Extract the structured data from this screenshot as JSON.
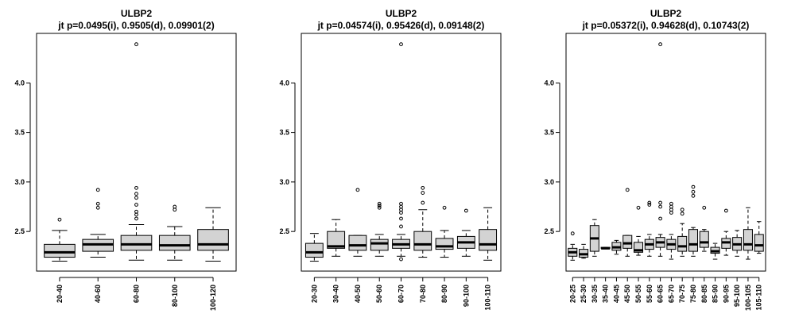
{
  "chart_data": [
    {
      "type": "boxplot",
      "title": "ULBP2",
      "subtitle": "jt p=0.0495(i), 0.9505(d), 0.09901(2)",
      "ylim": [
        2.1,
        4.5
      ],
      "yticks": [
        "2.5",
        "3.0",
        "3.5",
        "4.0"
      ],
      "categories": [
        "20-40",
        "40-60",
        "60-80",
        "80-100",
        "100-120"
      ],
      "boxes": [
        {
          "lw": 2.2,
          "q1": 2.24,
          "median": 2.29,
          "q3": 2.37,
          "uw": 2.51,
          "outliers": [
            2.62
          ]
        },
        {
          "lw": 2.24,
          "q1": 2.3,
          "median": 2.37,
          "q3": 2.42,
          "uw": 2.47,
          "outliers": [
            2.74,
            2.78,
            2.92
          ]
        },
        {
          "lw": 2.21,
          "q1": 2.31,
          "median": 2.37,
          "q3": 2.46,
          "uw": 2.57,
          "outliers": [
            2.63,
            2.67,
            2.7,
            2.77,
            2.84,
            2.88,
            2.94,
            4.39
          ]
        },
        {
          "lw": 2.21,
          "q1": 2.31,
          "median": 2.36,
          "q3": 2.46,
          "uw": 2.55,
          "outliers": [
            2.72,
            2.75
          ]
        },
        {
          "lw": 2.2,
          "q1": 2.31,
          "median": 2.37,
          "q3": 2.52,
          "uw": 2.74,
          "outliers": []
        }
      ]
    },
    {
      "type": "boxplot",
      "title": "ULBP2",
      "subtitle": "jt p=0.04574(i), 0.95426(d), 0.09148(2)",
      "ylim": [
        2.1,
        4.5
      ],
      "yticks": [
        "2.5",
        "3.0",
        "3.5",
        "4.0"
      ],
      "categories": [
        "20-30",
        "30-40",
        "40-50",
        "50-60",
        "60-70",
        "70-80",
        "80-90",
        "90-100",
        "100-110"
      ],
      "boxes": [
        {
          "lw": 2.2,
          "q1": 2.24,
          "median": 2.29,
          "q3": 2.38,
          "uw": 2.48,
          "outliers": []
        },
        {
          "lw": 2.25,
          "q1": 2.33,
          "median": 2.35,
          "q3": 2.5,
          "uw": 2.62,
          "outliers": []
        },
        {
          "lw": 2.25,
          "q1": 2.31,
          "median": 2.36,
          "q3": 2.46,
          "uw": 2.46,
          "outliers": [
            2.92
          ]
        },
        {
          "lw": 2.25,
          "q1": 2.31,
          "median": 2.38,
          "q3": 2.42,
          "uw": 2.47,
          "outliers": [
            2.74,
            2.76,
            2.78
          ]
        },
        {
          "lw": 2.25,
          "q1": 2.33,
          "median": 2.37,
          "q3": 2.42,
          "uw": 2.47,
          "outliers": [
            2.22,
            2.55,
            2.63,
            2.69,
            2.72,
            2.75,
            2.78,
            4.39
          ]
        },
        {
          "lw": 2.24,
          "q1": 2.31,
          "median": 2.37,
          "q3": 2.5,
          "uw": 2.72,
          "outliers": [
            2.79,
            2.89,
            2.94
          ]
        },
        {
          "lw": 2.24,
          "q1": 2.32,
          "median": 2.35,
          "q3": 2.43,
          "uw": 2.51,
          "outliers": [
            2.74
          ]
        },
        {
          "lw": 2.25,
          "q1": 2.33,
          "median": 2.39,
          "q3": 2.45,
          "uw": 2.51,
          "outliers": [
            2.71
          ]
        },
        {
          "lw": 2.21,
          "q1": 2.31,
          "median": 2.37,
          "q3": 2.52,
          "uw": 2.74,
          "outliers": []
        }
      ]
    },
    {
      "type": "boxplot",
      "title": "ULBP2",
      "subtitle": "jt p=0.05372(i), 0.94628(d), 0.10743(2)",
      "ylim": [
        2.1,
        4.5
      ],
      "yticks": [
        "2.5",
        "3.0",
        "3.5",
        "4.0"
      ],
      "categories": [
        "20-25",
        "25-30",
        "30-35",
        "35-40",
        "40-45",
        "45-50",
        "50-55",
        "55-60",
        "60-65",
        "65-70",
        "70-75",
        "75-80",
        "80-85",
        "85-90",
        "90-95",
        "95-100",
        "100-105",
        "105-110"
      ],
      "boxes": [
        {
          "lw": 2.21,
          "q1": 2.25,
          "median": 2.29,
          "q3": 2.33,
          "uw": 2.37,
          "outliers": [
            2.48
          ]
        },
        {
          "lw": 2.23,
          "q1": 2.24,
          "median": 2.27,
          "q3": 2.32,
          "uw": 2.37,
          "outliers": []
        },
        {
          "lw": 2.25,
          "q1": 2.3,
          "median": 2.43,
          "q3": 2.56,
          "uw": 2.62,
          "outliers": []
        },
        {
          "lw": 2.33,
          "q1": 2.33,
          "median": 2.33,
          "q3": 2.34,
          "uw": 2.34,
          "outliers": []
        },
        {
          "lw": 2.27,
          "q1": 2.31,
          "median": 2.34,
          "q3": 2.39,
          "uw": 2.41,
          "outliers": []
        },
        {
          "lw": 2.25,
          "q1": 2.33,
          "median": 2.38,
          "q3": 2.46,
          "uw": 2.46,
          "outliers": [
            2.92
          ]
        },
        {
          "lw": 2.26,
          "q1": 2.29,
          "median": 2.31,
          "q3": 2.39,
          "uw": 2.45,
          "outliers": [
            2.74
          ]
        },
        {
          "lw": 2.25,
          "q1": 2.32,
          "median": 2.37,
          "q3": 2.42,
          "uw": 2.47,
          "outliers": [
            2.77,
            2.79
          ]
        },
        {
          "lw": 2.25,
          "q1": 2.34,
          "median": 2.39,
          "q3": 2.44,
          "uw": 2.47,
          "outliers": [
            2.63,
            2.75,
            2.79,
            4.39
          ]
        },
        {
          "lw": 2.22,
          "q1": 2.32,
          "median": 2.37,
          "q3": 2.42,
          "uw": 2.47,
          "outliers": [
            2.69,
            2.72,
            2.75,
            2.78
          ]
        },
        {
          "lw": 2.25,
          "q1": 2.3,
          "median": 2.35,
          "q3": 2.45,
          "uw": 2.58,
          "outliers": [
            2.68,
            2.72
          ]
        },
        {
          "lw": 2.25,
          "q1": 2.3,
          "median": 2.37,
          "q3": 2.52,
          "uw": 2.54,
          "outliers": [
            2.86,
            2.9,
            2.95
          ]
        },
        {
          "lw": 2.3,
          "q1": 2.34,
          "median": 2.39,
          "q3": 2.5,
          "uw": 2.52,
          "outliers": [
            2.74
          ]
        },
        {
          "lw": 2.22,
          "q1": 2.28,
          "median": 2.3,
          "q3": 2.34,
          "uw": 2.38,
          "outliers": []
        },
        {
          "lw": 2.26,
          "q1": 2.33,
          "median": 2.39,
          "q3": 2.43,
          "uw": 2.5,
          "outliers": [
            2.71
          ]
        },
        {
          "lw": 2.25,
          "q1": 2.31,
          "median": 2.37,
          "q3": 2.44,
          "uw": 2.51,
          "outliers": []
        },
        {
          "lw": 2.22,
          "q1": 2.31,
          "median": 2.37,
          "q3": 2.52,
          "uw": 2.74,
          "outliers": []
        },
        {
          "lw": 2.28,
          "q1": 2.3,
          "median": 2.36,
          "q3": 2.47,
          "uw": 2.6,
          "outliers": []
        }
      ]
    }
  ]
}
